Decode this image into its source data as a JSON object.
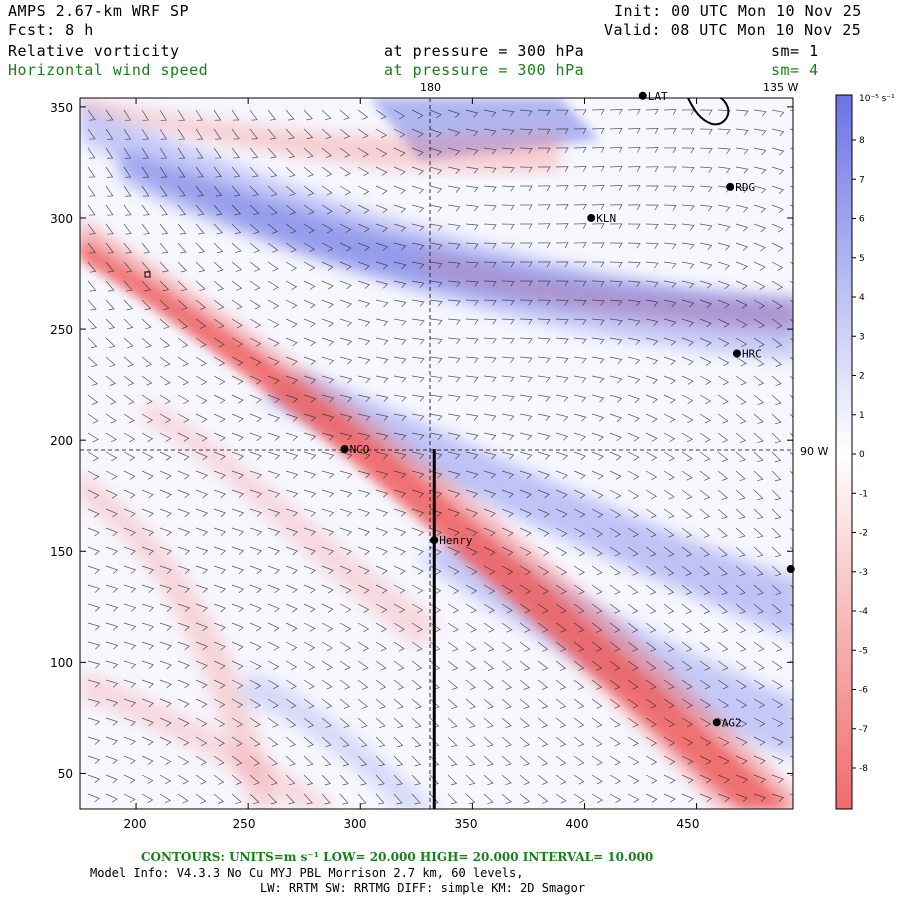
{
  "header": {
    "model": "AMPS 2.67-km WRF SP",
    "forecast": "Fcst:    8 h",
    "init": "Init: 00 UTC Mon 10 Nov 25",
    "valid": "Valid: 08 UTC Mon 10 Nov 25",
    "field1_name": "Relative vorticity",
    "field1_level": "at pressure =  300 hPa",
    "field1_smooth": "sm= 1",
    "field2_name": "Horizontal wind speed",
    "field2_level": "at pressure =  300 hPa",
    "field2_smooth": "sm= 4"
  },
  "map": {
    "x_ticks": [
      "200",
      "250",
      "300",
      "350",
      "400",
      "450"
    ],
    "y_ticks": [
      "50",
      "100",
      "150",
      "200",
      "250",
      "300",
      "350"
    ],
    "geo_labels": {
      "lon_180": "180",
      "lon_135w": "135 W",
      "lat_90w": "90 W"
    },
    "stations": [
      {
        "name": "LAT",
        "x": 426,
        "y": 355
      },
      {
        "name": "RDG",
        "x": 465,
        "y": 314
      },
      {
        "name": "KLN",
        "x": 403,
        "y": 300
      },
      {
        "name": "HRC",
        "x": 468,
        "y": 239
      },
      {
        "name": "NCO",
        "x": 293,
        "y": 196
      },
      {
        "name": "Henry",
        "x": 333,
        "y": 155
      },
      {
        "name": "",
        "x": 492,
        "y": 142
      },
      {
        "name": "AG2",
        "x": 459,
        "y": 73
      }
    ],
    "cross_section": {
      "x": 333,
      "y_from": 34,
      "y_to": 196
    },
    "colors": {
      "positive": "#5b66e0",
      "negative": "#f26b6b",
      "neutral": "#ffffff"
    }
  },
  "colorbar": {
    "unit": "10⁻⁵ s⁻¹",
    "labels": [
      "8",
      "7",
      "6",
      "5",
      "4",
      "3",
      "2",
      "1",
      "0",
      "-1",
      "-2",
      "-3",
      "-4",
      "-5",
      "-6",
      "-7",
      "-8"
    ]
  },
  "footer": {
    "contours": "CONTOURS:  UNITS=m s⁻¹  LOW=  20.000      HIGH=  20.000      INTERVAL=   10.000",
    "model_info": "Model Info: V4.3.3    No Cu    MYJ PBL  Morrison                2.7 km,  60 levels,",
    "physics": "LW: RRTM SW: RRTMG   DIFF: simple KM: 2D Smagor"
  }
}
